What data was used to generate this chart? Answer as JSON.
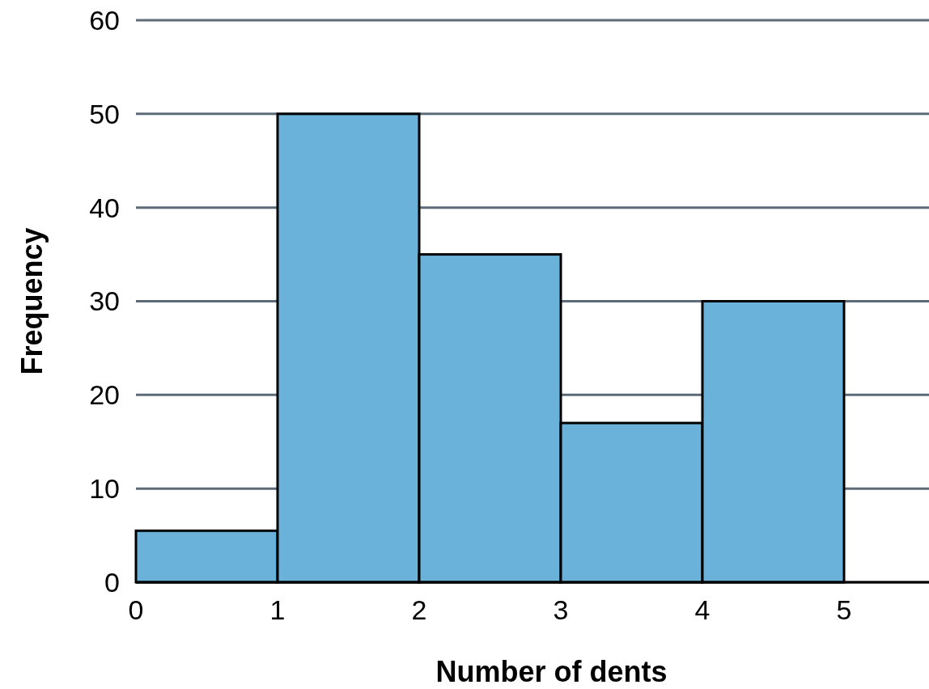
{
  "chart_data": {
    "type": "histogram",
    "xlabel": "Number of dents",
    "ylabel": "Frequency",
    "bins": [
      0,
      1,
      2,
      3,
      4,
      5
    ],
    "values": [
      5.5,
      50,
      35,
      17,
      30
    ],
    "color": "#6ab2d9",
    "xlim": [
      0,
      5.6
    ],
    "xticks": [
      0,
      1,
      2,
      3,
      4,
      5
    ],
    "ylim": [
      0,
      60
    ],
    "yticks": [
      0,
      10,
      20,
      30,
      40,
      50,
      60
    ],
    "grid": "y"
  }
}
